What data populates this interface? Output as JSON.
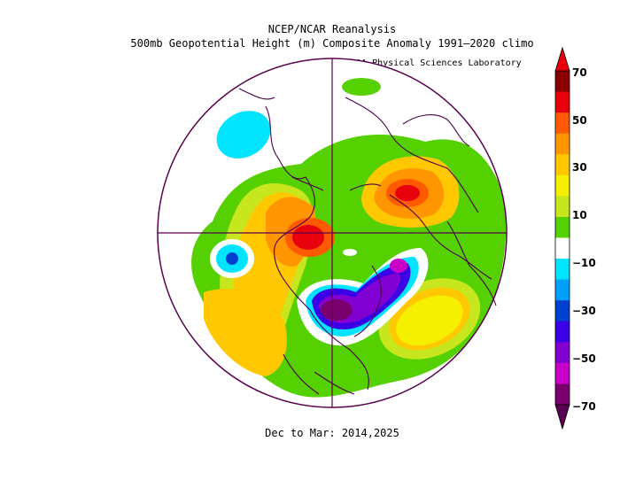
{
  "title_line1": "NCEP/NCAR Reanalysis",
  "title_line2": "500mb Geopotential Height (m) Composite Anomaly 1991–2020 climo",
  "credit": "NOAA Physical Sciences Laboratory",
  "period": "Dec to Mar: 2014,2025",
  "colorbar": {
    "labels": [
      "70",
      "50",
      "30",
      "10",
      "−10",
      "−30",
      "−50",
      "−70"
    ],
    "colors": [
      "#8b0000",
      "#e8000b",
      "#ff5a00",
      "#ff9500",
      "#ffc800",
      "#f5f000",
      "#c8e61e",
      "#55d000",
      "#ffffff",
      "#00e4ff",
      "#00a0ff",
      "#0040d0",
      "#3c00e6",
      "#8200d2",
      "#c800c8",
      "#7a006e"
    ]
  }
}
